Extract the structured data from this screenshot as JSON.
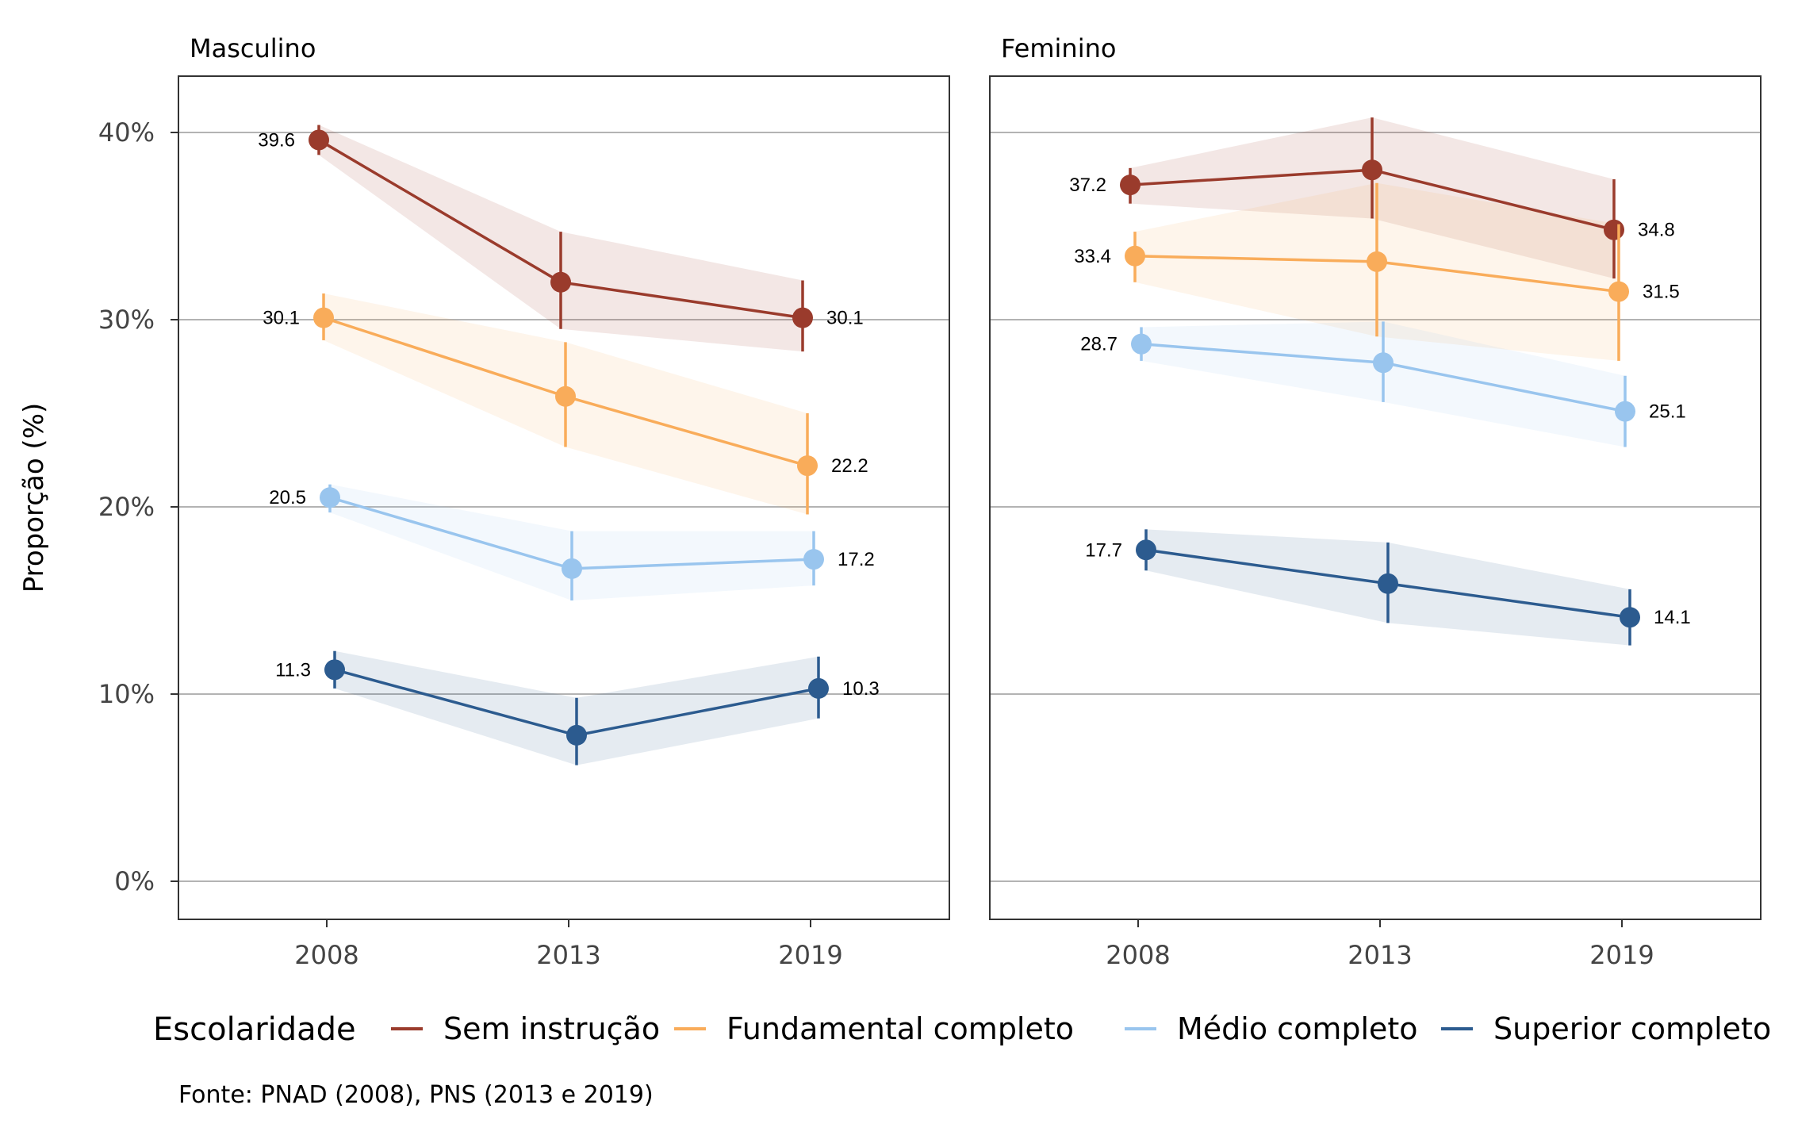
{
  "chart_data": {
    "type": "line",
    "ylabel": "Proporção (%)",
    "ylim": [
      -2,
      43
    ],
    "yticks": [
      0,
      10,
      20,
      30,
      40
    ],
    "ytick_labels": [
      "0%",
      "10%",
      "20%",
      "30%",
      "40%"
    ],
    "x": [
      "2008",
      "2013",
      "2019"
    ],
    "grid": "horizontal",
    "legend": {
      "title": "Escolaridade",
      "position": "bottom"
    },
    "caption": "Fonte: PNAD (2008), PNS (2013 e 2019)",
    "series_meta": [
      {
        "name": "Sem instrução",
        "color": "#9a3b2c"
      },
      {
        "name": "Fundamental completo",
        "color": "#f9ac5a"
      },
      {
        "name": "Médio completo",
        "color": "#99c5ee"
      },
      {
        "name": "Superior completo",
        "color": "#2c5b8f"
      }
    ],
    "panels": [
      {
        "title": "Masculino",
        "series": [
          {
            "name": "Sem instrução",
            "values": [
              39.6,
              32.0,
              30.1
            ],
            "labels": [
              "39.6",
              "",
              "30.1"
            ],
            "ci_low": [
              38.8,
              29.5,
              28.3
            ],
            "ci_high": [
              40.4,
              34.7,
              32.1
            ]
          },
          {
            "name": "Fundamental completo",
            "values": [
              30.1,
              25.9,
              22.2
            ],
            "labels": [
              "30.1",
              "",
              "22.2"
            ],
            "ci_low": [
              28.9,
              23.2,
              19.6
            ],
            "ci_high": [
              31.4,
              28.8,
              25.0
            ]
          },
          {
            "name": "Médio completo",
            "values": [
              20.5,
              16.7,
              17.2
            ],
            "labels": [
              "20.5",
              "",
              "17.2"
            ],
            "ci_low": [
              19.7,
              15.0,
              15.8
            ],
            "ci_high": [
              21.2,
              18.7,
              18.7
            ]
          },
          {
            "name": "Superior completo",
            "values": [
              11.3,
              7.8,
              10.3
            ],
            "labels": [
              "11.3",
              "",
              "10.3"
            ],
            "ci_low": [
              10.3,
              6.2,
              8.7
            ],
            "ci_high": [
              12.3,
              9.8,
              12.0
            ]
          }
        ]
      },
      {
        "title": "Feminino",
        "series": [
          {
            "name": "Sem instrução",
            "values": [
              37.2,
              38.0,
              34.8
            ],
            "labels": [
              "37.2",
              "",
              "34.8"
            ],
            "ci_low": [
              36.2,
              35.4,
              32.2
            ],
            "ci_high": [
              38.1,
              40.8,
              37.5
            ]
          },
          {
            "name": "Fundamental completo",
            "values": [
              33.4,
              33.1,
              31.5
            ],
            "labels": [
              "33.4",
              "",
              "31.5"
            ],
            "ci_low": [
              32.0,
              29.1,
              27.8
            ],
            "ci_high": [
              34.7,
              37.3,
              35.1
            ]
          },
          {
            "name": "Médio completo",
            "values": [
              28.7,
              27.7,
              25.1
            ],
            "labels": [
              "28.7",
              "",
              "25.1"
            ],
            "ci_low": [
              27.8,
              25.6,
              23.2
            ],
            "ci_high": [
              29.6,
              29.9,
              27.0
            ]
          },
          {
            "name": "Superior completo",
            "values": [
              17.7,
              15.9,
              14.1
            ],
            "labels": [
              "17.7",
              "",
              "14.1"
            ],
            "ci_low": [
              16.6,
              13.8,
              12.6
            ],
            "ci_high": [
              18.8,
              18.1,
              15.6
            ]
          }
        ]
      }
    ]
  }
}
